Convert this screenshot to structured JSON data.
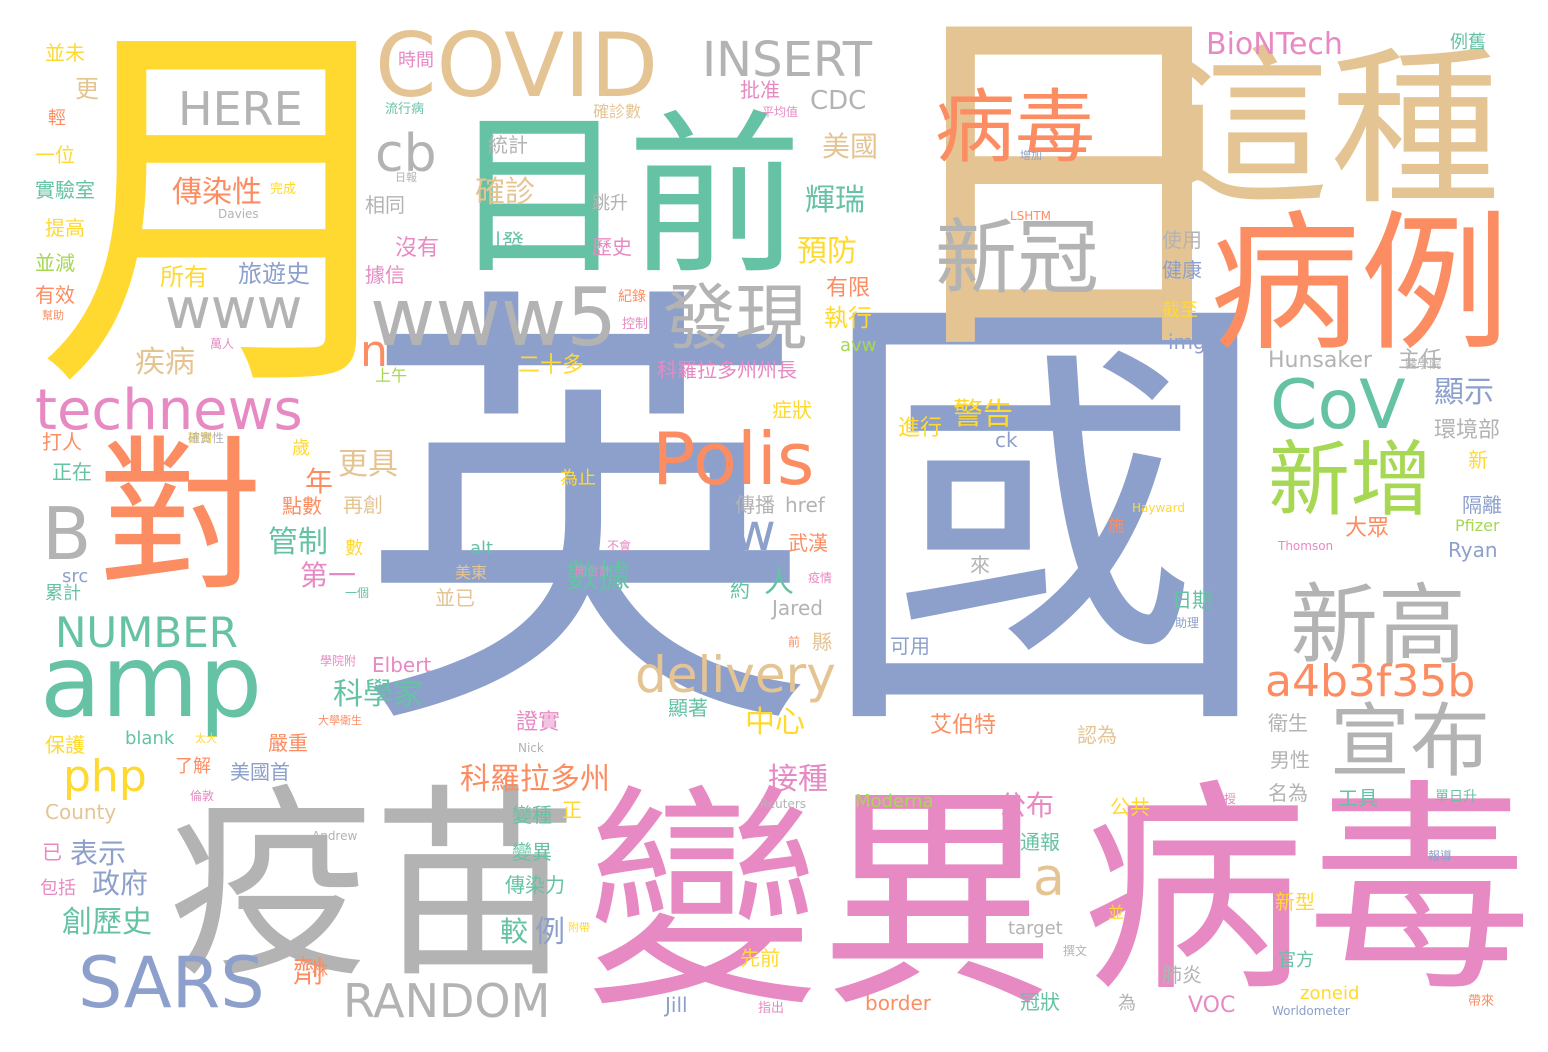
{
  "palette": {
    "blue": "#8DA0CB",
    "pink": "#E78AC3",
    "orange": "#FC8D62",
    "teal": "#66C2A5",
    "yellow": "#FFD92F",
    "tan": "#E5C494",
    "gray": "#B3B3B3",
    "green": "#A6D854"
  },
  "words": [
    {
      "text": "英國",
      "color": "blue"
    },
    {
      "text": "日",
      "color": "tan"
    },
    {
      "text": "月",
      "color": "yellow"
    },
    {
      "text": "變異",
      "color": "pink"
    },
    {
      "text": "病毒",
      "color": "pink"
    },
    {
      "text": "疫苗",
      "color": "gray"
    },
    {
      "text": "這種",
      "color": "tan"
    },
    {
      "text": "目前",
      "color": "teal"
    },
    {
      "text": "病例",
      "color": "orange"
    },
    {
      "text": "對",
      "color": "orange"
    },
    {
      "text": "COVID",
      "color": "tan"
    },
    {
      "text": "病毒",
      "color": "orange"
    },
    {
      "text": "新冠",
      "color": "gray"
    },
    {
      "text": "www5",
      "color": "gray"
    },
    {
      "text": "amp",
      "color": "teal"
    },
    {
      "text": "新高",
      "color": "gray"
    },
    {
      "text": "新增",
      "color": "green"
    },
    {
      "text": "宣布",
      "color": "gray"
    },
    {
      "text": "發現",
      "color": "gray"
    },
    {
      "text": "Polis",
      "color": "orange"
    },
    {
      "text": "CoV",
      "color": "teal"
    },
    {
      "text": "technews",
      "color": "pink"
    },
    {
      "text": "SARS",
      "color": "blue"
    },
    {
      "text": "www",
      "color": "gray"
    },
    {
      "text": "INSERT",
      "color": "gray"
    },
    {
      "text": "a4b3f35b",
      "color": "orange"
    },
    {
      "text": "delivery",
      "color": "tan"
    },
    {
      "text": "RANDOM",
      "color": "gray"
    },
    {
      "text": "HERE",
      "color": "gray"
    },
    {
      "text": "NUMBER",
      "color": "teal"
    },
    {
      "text": "B",
      "color": "gray"
    },
    {
      "text": "cb",
      "color": "gray"
    },
    {
      "text": "php",
      "color": "yellow"
    },
    {
      "text": "tw",
      "color": "blue"
    },
    {
      "text": "a",
      "color": "tan"
    },
    {
      "text": "n",
      "color": "orange"
    },
    {
      "text": "BioNTech",
      "color": "pink"
    },
    {
      "text": "CDC",
      "color": "gray"
    },
    {
      "text": "傳染性",
      "color": "orange"
    },
    {
      "text": "確診",
      "color": "tan"
    },
    {
      "text": "美國",
      "color": "tan"
    },
    {
      "text": "輝瑞",
      "color": "teal"
    },
    {
      "text": "預防",
      "color": "yellow"
    },
    {
      "text": "執行",
      "color": "yellow"
    },
    {
      "text": "警告",
      "color": "yellow"
    },
    {
      "text": "顯示",
      "color": "blue"
    },
    {
      "text": "環境部",
      "color": "gray"
    },
    {
      "text": "數據",
      "color": "teal"
    },
    {
      "text": "管制",
      "color": "teal"
    },
    {
      "text": "第一",
      "color": "pink"
    },
    {
      "text": "科學家",
      "color": "teal"
    },
    {
      "text": "中心",
      "color": "yellow"
    },
    {
      "text": "接種",
      "color": "pink"
    },
    {
      "text": "科羅拉多州",
      "color": "orange"
    },
    {
      "text": "公布",
      "color": "pink"
    },
    {
      "text": "表示",
      "color": "blue"
    },
    {
      "text": "政府",
      "color": "blue"
    },
    {
      "text": "創歷史",
      "color": "teal"
    },
    {
      "text": "疾病",
      "color": "tan"
    },
    {
      "text": "更具",
      "color": "tan"
    },
    {
      "text": "年",
      "color": "orange"
    },
    {
      "text": "人",
      "color": "teal"
    },
    {
      "text": "例",
      "color": "blue"
    },
    {
      "text": "較",
      "color": "teal"
    },
    {
      "text": "劑",
      "color": "orange"
    },
    {
      "text": "旅遊史",
      "color": "blue"
    },
    {
      "text": "所有",
      "color": "yellow"
    },
    {
      "text": "引發",
      "color": "teal"
    },
    {
      "text": "統計",
      "color": "gray"
    },
    {
      "text": "歷史",
      "color": "pink"
    },
    {
      "text": "跳升",
      "color": "gray"
    },
    {
      "text": "沒有",
      "color": "pink"
    },
    {
      "text": "據信",
      "color": "pink"
    },
    {
      "text": "相同",
      "color": "gray"
    },
    {
      "text": "二十多",
      "color": "yellow"
    },
    {
      "text": "科羅拉多州州長",
      "color": "pink"
    },
    {
      "text": "有限",
      "color": "orange"
    },
    {
      "text": "avw",
      "color": "green"
    },
    {
      "text": "img",
      "color": "blue"
    },
    {
      "text": "Hunsaker",
      "color": "gray"
    },
    {
      "text": "主任",
      "color": "gray"
    },
    {
      "text": "使用",
      "color": "gray"
    },
    {
      "text": "健康",
      "color": "blue"
    },
    {
      "text": "截至",
      "color": "yellow"
    },
    {
      "text": "批准",
      "color": "pink"
    },
    {
      "text": "確診數",
      "color": "tan"
    },
    {
      "text": "例舊",
      "color": "teal"
    },
    {
      "text": "時間",
      "color": "pink"
    },
    {
      "text": "並未",
      "color": "yellow"
    },
    {
      "text": "更",
      "color": "tan"
    },
    {
      "text": "一位",
      "color": "yellow"
    },
    {
      "text": "實驗室",
      "color": "teal"
    },
    {
      "text": "提高",
      "color": "yellow"
    },
    {
      "text": "並減",
      "color": "green"
    },
    {
      "text": "有效",
      "color": "orange"
    },
    {
      "text": "上午",
      "color": "green"
    },
    {
      "text": "打人",
      "color": "orange"
    },
    {
      "text": "正在",
      "color": "teal"
    },
    {
      "text": "再創",
      "color": "tan"
    },
    {
      "text": "點數",
      "color": "orange"
    },
    {
      "text": "為止",
      "color": "yellow"
    },
    {
      "text": "進行",
      "color": "yellow"
    },
    {
      "text": "ck",
      "color": "blue"
    },
    {
      "text": "新",
      "color": "yellow"
    },
    {
      "text": "隔離",
      "color": "blue"
    },
    {
      "text": "大眾",
      "color": "orange"
    },
    {
      "text": "Ryan",
      "color": "blue"
    },
    {
      "text": "Pfizer",
      "color": "green"
    },
    {
      "text": "Thomson",
      "color": "pink"
    },
    {
      "text": "Hayward",
      "color": "yellow"
    },
    {
      "text": "傳播",
      "color": "gray"
    },
    {
      "text": "href",
      "color": "gray"
    },
    {
      "text": "武漢",
      "color": "orange"
    },
    {
      "text": "alt",
      "color": "teal"
    },
    {
      "text": "並已",
      "color": "tan"
    },
    {
      "text": "美東",
      "color": "tan"
    },
    {
      "text": "約",
      "color": "teal"
    },
    {
      "text": "Jared",
      "color": "gray"
    },
    {
      "text": "可用",
      "color": "blue"
    },
    {
      "text": "日期",
      "color": "teal"
    },
    {
      "text": "src",
      "color": "blue"
    },
    {
      "text": "累計",
      "color": "teal"
    },
    {
      "text": "數",
      "color": "yellow"
    },
    {
      "text": "Elbert",
      "color": "pink"
    },
    {
      "text": "艾伯特",
      "color": "orange"
    },
    {
      "text": "顯著",
      "color": "teal"
    },
    {
      "text": "證實",
      "color": "pink"
    },
    {
      "text": "認為",
      "color": "tan"
    },
    {
      "text": "衛生",
      "color": "gray"
    },
    {
      "text": "男性",
      "color": "gray"
    },
    {
      "text": "名為",
      "color": "gray"
    },
    {
      "text": "工具",
      "color": "teal"
    },
    {
      "text": "公共",
      "color": "yellow"
    },
    {
      "text": "保護",
      "color": "yellow"
    },
    {
      "text": "blank",
      "color": "teal"
    },
    {
      "text": "了解",
      "color": "orange"
    },
    {
      "text": "美國首",
      "color": "blue"
    },
    {
      "text": "嚴重",
      "color": "orange"
    },
    {
      "text": "County",
      "color": "tan"
    },
    {
      "text": "已",
      "color": "pink"
    },
    {
      "text": "包括",
      "color": "pink"
    },
    {
      "text": "變種",
      "color": "teal"
    },
    {
      "text": "變異",
      "color": "teal"
    },
    {
      "text": "傳染力",
      "color": "teal"
    },
    {
      "text": "Moderna",
      "color": "green"
    },
    {
      "text": "通報",
      "color": "teal"
    },
    {
      "text": "新型",
      "color": "yellow"
    },
    {
      "text": "官方",
      "color": "teal"
    },
    {
      "text": "先前",
      "color": "yellow"
    },
    {
      "text": "肺炎",
      "color": "gray"
    },
    {
      "text": "冠狀",
      "color": "teal"
    },
    {
      "text": "target",
      "color": "gray"
    },
    {
      "text": "zoneid",
      "color": "yellow"
    },
    {
      "text": "VOC",
      "color": "pink"
    },
    {
      "text": "border",
      "color": "orange"
    },
    {
      "text": "Jill",
      "color": "blue"
    },
    {
      "text": "株",
      "color": "orange"
    },
    {
      "text": "正",
      "color": "yellow"
    },
    {
      "text": "為",
      "color": "gray"
    },
    {
      "text": "來",
      "color": "gray"
    },
    {
      "text": "症狀",
      "color": "yellow"
    },
    {
      "text": "並",
      "color": "yellow"
    },
    {
      "text": "LSHTM",
      "color": "orange"
    },
    {
      "text": "Davies",
      "color": "gray"
    },
    {
      "text": "完成",
      "color": "yellow"
    },
    {
      "text": "Andrew",
      "color": "gray"
    },
    {
      "text": "Reuters",
      "color": "gray"
    },
    {
      "text": "Nick",
      "color": "gray"
    },
    {
      "text": "Worldometer",
      "color": "blue"
    },
    {
      "text": "萬人",
      "color": "pink"
    },
    {
      "text": "流行病",
      "color": "teal"
    },
    {
      "text": "平均值",
      "color": "pink"
    },
    {
      "text": "增加",
      "color": "blue"
    },
    {
      "text": "日報",
      "color": "gray"
    },
    {
      "text": "紀錄",
      "color": "orange"
    },
    {
      "text": "控制",
      "color": "pink"
    },
    {
      "text": "疫情",
      "color": "pink"
    },
    {
      "text": "不會",
      "color": "pink"
    },
    {
      "text": "開台計",
      "color": "pink"
    },
    {
      "text": "大學衛生",
      "color": "orange"
    },
    {
      "text": "太大",
      "color": "yellow"
    },
    {
      "text": "倫敦",
      "color": "pink"
    },
    {
      "text": "教授",
      "color": "pink"
    },
    {
      "text": "報導",
      "color": "blue"
    },
    {
      "text": "單日升",
      "color": "teal"
    },
    {
      "text": "指出",
      "color": "pink"
    },
    {
      "text": "撰文",
      "color": "gray"
    },
    {
      "text": "帶來",
      "color": "orange"
    },
    {
      "text": "附帶",
      "color": "yellow"
    },
    {
      "text": "檢測",
      "color": "yellow"
    },
    {
      "text": "醫學院",
      "color": "gray"
    },
    {
      "text": "學院附",
      "color": "pink"
    },
    {
      "text": "確實性",
      "color": "gray"
    },
    {
      "text": "助理",
      "color": "blue"
    },
    {
      "text": "前",
      "color": "orange"
    },
    {
      "text": "縣",
      "color": "tan"
    },
    {
      "text": "一個",
      "color": "teal"
    },
    {
      "text": "幫助",
      "color": "orange"
    },
    {
      "text": "歲",
      "color": "yellow"
    },
    {
      "text": "施",
      "color": "orange"
    },
    {
      "text": "輕",
      "color": "orange"
    }
  ]
}
